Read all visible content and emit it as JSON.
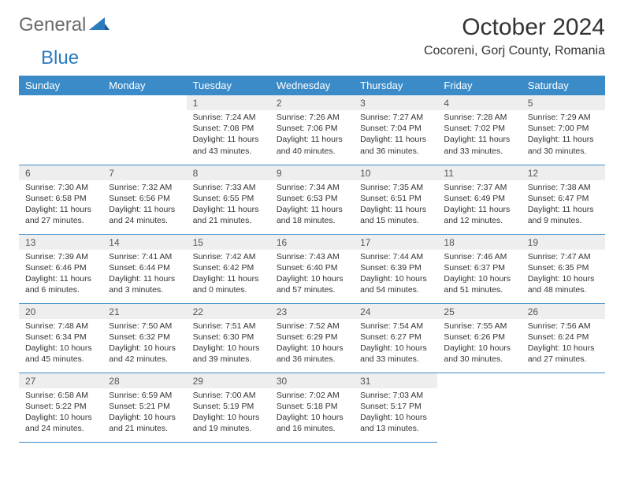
{
  "brand": {
    "general": "General",
    "blue": "Blue"
  },
  "title": "October 2024",
  "location": "Cocoreni, Gorj County, Romania",
  "colors": {
    "header_bg": "#3b8bc9",
    "header_text": "#ffffff",
    "daynum_bg": "#eeeeee",
    "row_border": "#3b8bc9",
    "logo_gray": "#6b6b6b",
    "logo_blue": "#2b7bbf",
    "body_text": "#333333"
  },
  "weekdays": [
    "Sunday",
    "Monday",
    "Tuesday",
    "Wednesday",
    "Thursday",
    "Friday",
    "Saturday"
  ],
  "first_weekday_index": 2,
  "days": [
    {
      "n": 1,
      "sunrise": "7:24 AM",
      "sunset": "7:08 PM",
      "dl1": "Daylight: 11 hours",
      "dl2": "and 43 minutes."
    },
    {
      "n": 2,
      "sunrise": "7:26 AM",
      "sunset": "7:06 PM",
      "dl1": "Daylight: 11 hours",
      "dl2": "and 40 minutes."
    },
    {
      "n": 3,
      "sunrise": "7:27 AM",
      "sunset": "7:04 PM",
      "dl1": "Daylight: 11 hours",
      "dl2": "and 36 minutes."
    },
    {
      "n": 4,
      "sunrise": "7:28 AM",
      "sunset": "7:02 PM",
      "dl1": "Daylight: 11 hours",
      "dl2": "and 33 minutes."
    },
    {
      "n": 5,
      "sunrise": "7:29 AM",
      "sunset": "7:00 PM",
      "dl1": "Daylight: 11 hours",
      "dl2": "and 30 minutes."
    },
    {
      "n": 6,
      "sunrise": "7:30 AM",
      "sunset": "6:58 PM",
      "dl1": "Daylight: 11 hours",
      "dl2": "and 27 minutes."
    },
    {
      "n": 7,
      "sunrise": "7:32 AM",
      "sunset": "6:56 PM",
      "dl1": "Daylight: 11 hours",
      "dl2": "and 24 minutes."
    },
    {
      "n": 8,
      "sunrise": "7:33 AM",
      "sunset": "6:55 PM",
      "dl1": "Daylight: 11 hours",
      "dl2": "and 21 minutes."
    },
    {
      "n": 9,
      "sunrise": "7:34 AM",
      "sunset": "6:53 PM",
      "dl1": "Daylight: 11 hours",
      "dl2": "and 18 minutes."
    },
    {
      "n": 10,
      "sunrise": "7:35 AM",
      "sunset": "6:51 PM",
      "dl1": "Daylight: 11 hours",
      "dl2": "and 15 minutes."
    },
    {
      "n": 11,
      "sunrise": "7:37 AM",
      "sunset": "6:49 PM",
      "dl1": "Daylight: 11 hours",
      "dl2": "and 12 minutes."
    },
    {
      "n": 12,
      "sunrise": "7:38 AM",
      "sunset": "6:47 PM",
      "dl1": "Daylight: 11 hours",
      "dl2": "and 9 minutes."
    },
    {
      "n": 13,
      "sunrise": "7:39 AM",
      "sunset": "6:46 PM",
      "dl1": "Daylight: 11 hours",
      "dl2": "and 6 minutes."
    },
    {
      "n": 14,
      "sunrise": "7:41 AM",
      "sunset": "6:44 PM",
      "dl1": "Daylight: 11 hours",
      "dl2": "and 3 minutes."
    },
    {
      "n": 15,
      "sunrise": "7:42 AM",
      "sunset": "6:42 PM",
      "dl1": "Daylight: 11 hours",
      "dl2": "and 0 minutes."
    },
    {
      "n": 16,
      "sunrise": "7:43 AM",
      "sunset": "6:40 PM",
      "dl1": "Daylight: 10 hours",
      "dl2": "and 57 minutes."
    },
    {
      "n": 17,
      "sunrise": "7:44 AM",
      "sunset": "6:39 PM",
      "dl1": "Daylight: 10 hours",
      "dl2": "and 54 minutes."
    },
    {
      "n": 18,
      "sunrise": "7:46 AM",
      "sunset": "6:37 PM",
      "dl1": "Daylight: 10 hours",
      "dl2": "and 51 minutes."
    },
    {
      "n": 19,
      "sunrise": "7:47 AM",
      "sunset": "6:35 PM",
      "dl1": "Daylight: 10 hours",
      "dl2": "and 48 minutes."
    },
    {
      "n": 20,
      "sunrise": "7:48 AM",
      "sunset": "6:34 PM",
      "dl1": "Daylight: 10 hours",
      "dl2": "and 45 minutes."
    },
    {
      "n": 21,
      "sunrise": "7:50 AM",
      "sunset": "6:32 PM",
      "dl1": "Daylight: 10 hours",
      "dl2": "and 42 minutes."
    },
    {
      "n": 22,
      "sunrise": "7:51 AM",
      "sunset": "6:30 PM",
      "dl1": "Daylight: 10 hours",
      "dl2": "and 39 minutes."
    },
    {
      "n": 23,
      "sunrise": "7:52 AM",
      "sunset": "6:29 PM",
      "dl1": "Daylight: 10 hours",
      "dl2": "and 36 minutes."
    },
    {
      "n": 24,
      "sunrise": "7:54 AM",
      "sunset": "6:27 PM",
      "dl1": "Daylight: 10 hours",
      "dl2": "and 33 minutes."
    },
    {
      "n": 25,
      "sunrise": "7:55 AM",
      "sunset": "6:26 PM",
      "dl1": "Daylight: 10 hours",
      "dl2": "and 30 minutes."
    },
    {
      "n": 26,
      "sunrise": "7:56 AM",
      "sunset": "6:24 PM",
      "dl1": "Daylight: 10 hours",
      "dl2": "and 27 minutes."
    },
    {
      "n": 27,
      "sunrise": "6:58 AM",
      "sunset": "5:22 PM",
      "dl1": "Daylight: 10 hours",
      "dl2": "and 24 minutes."
    },
    {
      "n": 28,
      "sunrise": "6:59 AM",
      "sunset": "5:21 PM",
      "dl1": "Daylight: 10 hours",
      "dl2": "and 21 minutes."
    },
    {
      "n": 29,
      "sunrise": "7:00 AM",
      "sunset": "5:19 PM",
      "dl1": "Daylight: 10 hours",
      "dl2": "and 19 minutes."
    },
    {
      "n": 30,
      "sunrise": "7:02 AM",
      "sunset": "5:18 PM",
      "dl1": "Daylight: 10 hours",
      "dl2": "and 16 minutes."
    },
    {
      "n": 31,
      "sunrise": "7:03 AM",
      "sunset": "5:17 PM",
      "dl1": "Daylight: 10 hours",
      "dl2": "and 13 minutes."
    }
  ],
  "labels": {
    "sunrise": "Sunrise:",
    "sunset": "Sunset:"
  }
}
